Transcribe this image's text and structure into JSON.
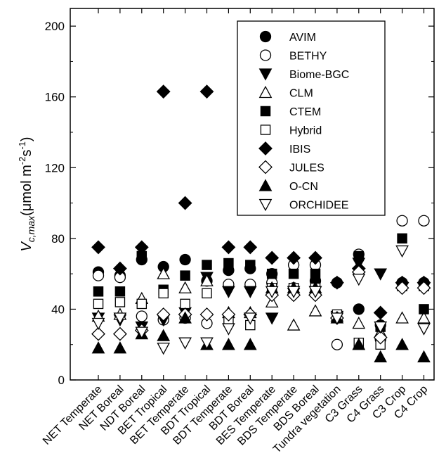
{
  "chart_data": {
    "type": "scatter",
    "ylabel_main": "V",
    "ylabel_sub": "c,max",
    "ylabel_unit_1": "(μmol m",
    "ylabel_sup_1": "-2",
    "ylabel_unit_2": "s",
    "ylabel_sup_2": "-1",
    "ylabel_close": ")",
    "ylim": [
      0,
      210
    ],
    "yticks": [
      0,
      40,
      80,
      120,
      160,
      200
    ],
    "ytick_labels": [
      "0",
      "40",
      "80",
      "120",
      "160",
      "200"
    ],
    "legend_position": "top-right",
    "categories": [
      "NET Temperate",
      "NET Boreal",
      "NDT Boreal",
      "BET Tropical",
      "BET Temperate",
      "BDT Tropical",
      "BDT Temperate",
      "BDT Boreal",
      "BES Temperate",
      "BDS Temperate",
      "BDS Boreal",
      "Tundra vegetation",
      "C3 Grass",
      "C4 Grass",
      "C3 Crop",
      "C4 Crop"
    ],
    "series": [
      {
        "name": "AVIM",
        "marker": "circle-filled",
        "values": [
          61,
          59,
          68,
          64,
          68,
          56,
          62,
          63,
          60,
          52,
          56,
          55,
          40,
          31,
          55,
          55
        ]
      },
      {
        "name": "BETHY",
        "marker": "circle-open",
        "values": [
          59,
          58,
          36,
          34,
          35,
          32,
          54,
          54,
          55,
          65,
          65,
          20,
          71,
          23,
          90,
          90
        ]
      },
      {
        "name": "Biome-BGC",
        "marker": "tri-down-filled",
        "values": [
          35,
          34,
          30,
          34,
          38,
          58,
          50,
          50,
          35,
          49,
          50,
          36,
          66,
          60,
          52,
          52
        ]
      },
      {
        "name": "CLM",
        "marker": "tri-up-open",
        "values": [
          36,
          37,
          46,
          60,
          52,
          56,
          38,
          38,
          44,
          31,
          39,
          36,
          32,
          27,
          35,
          35
        ]
      },
      {
        "name": "CTEM",
        "marker": "square-filled",
        "values": [
          50,
          50,
          70,
          51,
          59,
          65,
          66,
          65,
          60,
          60,
          60,
          36,
          70,
          30,
          80,
          40
        ]
      },
      {
        "name": "Hybrid",
        "marker": "square-open",
        "values": [
          43,
          44,
          43,
          49,
          43,
          49,
          33,
          31,
          52,
          52,
          52,
          37,
          21,
          20,
          53,
          53
        ]
      },
      {
        "name": "IBIS",
        "marker": "diamond-filled",
        "values": [
          75,
          63,
          75,
          163,
          100,
          163,
          75,
          75,
          69,
          69,
          69,
          55,
          63,
          38,
          55,
          55
        ]
      },
      {
        "name": "JULES",
        "marker": "diamond-open",
        "values": [
          26,
          26,
          28,
          37,
          37,
          37,
          37,
          37,
          48,
          48,
          48,
          35,
          61,
          24,
          52,
          52
        ]
      },
      {
        "name": "O-CN",
        "marker": "tri-up-filled",
        "values": [
          18,
          18,
          26,
          25,
          35,
          20,
          20,
          20,
          52,
          52,
          52,
          35,
          20,
          13,
          20,
          13
        ]
      },
      {
        "name": "ORCHIDEE",
        "marker": "tri-down-open",
        "values": [
          32,
          35,
          27,
          18,
          21,
          21,
          29,
          35,
          50,
          50,
          50,
          35,
          57,
          30,
          73,
          29
        ]
      }
    ]
  }
}
